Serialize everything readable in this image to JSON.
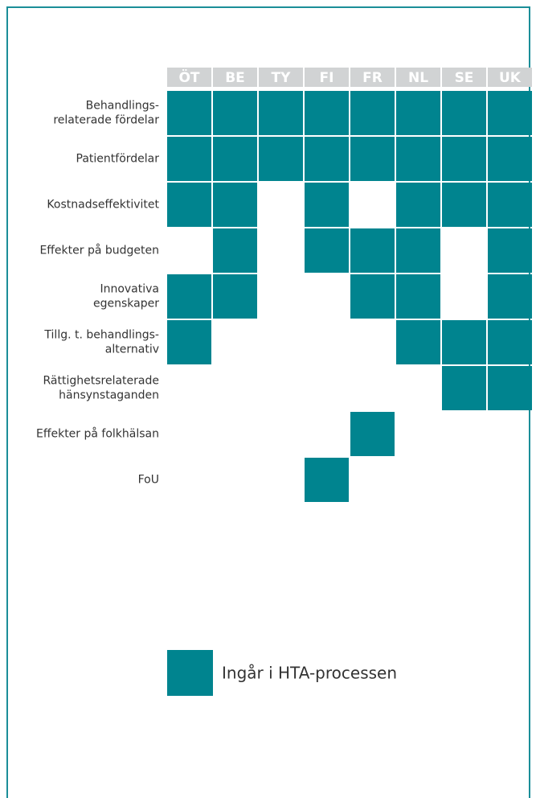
{
  "columns": [
    "ÖT",
    "BE",
    "TY",
    "FI",
    "FR",
    "NL",
    "SE",
    "UK"
  ],
  "rows": [
    {
      "label": [
        "Behandlings-",
        "relaterade fördelar"
      ],
      "cells": [
        1,
        1,
        1,
        1,
        1,
        1,
        1,
        1
      ]
    },
    {
      "label": [
        "Patientfördelar"
      ],
      "cells": [
        1,
        1,
        1,
        1,
        1,
        1,
        1,
        1
      ]
    },
    {
      "label": [
        "Kostnadseffektivitet"
      ],
      "cells": [
        1,
        1,
        0,
        1,
        0,
        1,
        1,
        1
      ]
    },
    {
      "label": [
        "Effekter på budgeten"
      ],
      "cells": [
        0,
        1,
        0,
        1,
        1,
        1,
        0,
        1
      ]
    },
    {
      "label": [
        "Innovativa",
        "egenskaper"
      ],
      "cells": [
        1,
        1,
        0,
        0,
        1,
        1,
        0,
        1
      ]
    },
    {
      "label": [
        "Tillg. t. behandlings-",
        "alternativ"
      ],
      "cells": [
        1,
        0,
        0,
        0,
        0,
        1,
        1,
        1
      ]
    },
    {
      "label": [
        "Rättighetsrelaterade",
        "hänsynstaganden"
      ],
      "cells": [
        0,
        0,
        0,
        0,
        0,
        0,
        1,
        1
      ]
    },
    {
      "label": [
        "Effekter på folkhälsan"
      ],
      "cells": [
        0,
        0,
        0,
        0,
        1,
        0,
        0,
        0
      ]
    },
    {
      "label": [
        "FoU"
      ],
      "cells": [
        0,
        0,
        0,
        1,
        0,
        0,
        0,
        0
      ]
    }
  ],
  "legend": {
    "label": "Ingår i HTA-processen"
  },
  "color": "#00848f"
}
